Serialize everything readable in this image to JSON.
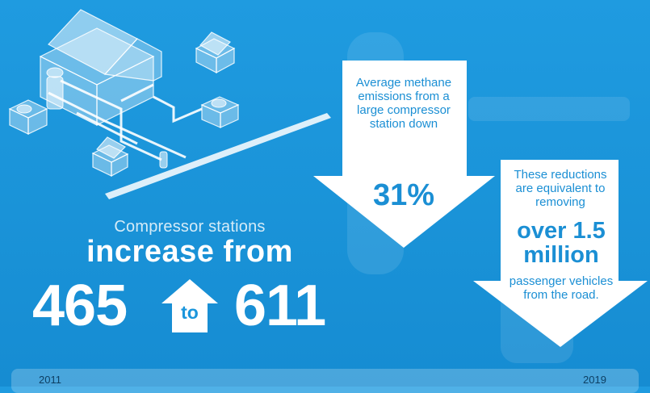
{
  "colors": {
    "background": "#1c97dd",
    "arrow_fill": "#ffffff",
    "arrow_text": "#1b8fd4",
    "year_text": "#0d3f63"
  },
  "headline": {
    "subtitle": "Compressor stations",
    "title": "increase from",
    "from_value": "465",
    "connector": "to",
    "to_value": "611"
  },
  "emissions_arrow": {
    "text": "Average methane emissions from a large compressor station down",
    "value": "31%"
  },
  "vehicles_arrow": {
    "text_before": "These reductions are equivalent to removing",
    "value": "over 1.5 million",
    "text_after": "passenger vehicles from the road."
  },
  "timeline": {
    "start_year": "2011",
    "end_year": "2019"
  },
  "icons": {
    "illustration": "compressor-station-illustration-icon",
    "up_arrow": "up-arrow-icon",
    "down_arrows": "down-arrow-icon"
  }
}
